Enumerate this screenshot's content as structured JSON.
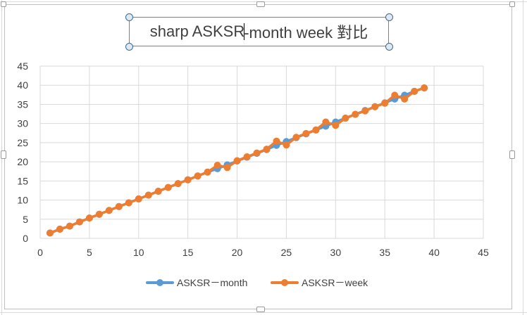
{
  "title": {
    "before_caret": "sharp ASKSR",
    "after_caret": "-month week 對比"
  },
  "colors": {
    "series_month": "#5b9bd5",
    "series_week": "#ed7d31",
    "gridline": "#d9d9d9",
    "axis_text": "#404040"
  },
  "chart_data": {
    "type": "line",
    "title": "sharp ASKSR-month week 對比",
    "xlim": [
      0,
      45
    ],
    "ylim": [
      0,
      45
    ],
    "x_ticks": [
      0,
      5,
      10,
      15,
      20,
      25,
      30,
      35,
      40,
      45
    ],
    "y_ticks": [
      0,
      5,
      10,
      15,
      20,
      25,
      30,
      35,
      40,
      45
    ],
    "grid": true,
    "markers": true,
    "legend_position": "bottom",
    "series": [
      {
        "name": "ASKSR－month",
        "color": "#5b9bd5",
        "x": [
          1,
          2,
          3,
          4,
          5,
          6,
          7,
          8,
          9,
          10,
          11,
          12,
          13,
          14,
          15,
          16,
          17,
          18,
          19,
          20,
          21,
          22,
          23,
          24,
          25,
          26,
          27,
          28,
          29,
          30,
          31,
          32,
          33,
          34,
          35,
          36,
          37,
          38,
          39
        ],
        "y": [
          1.4,
          2.4,
          3.2,
          4.3,
          5.3,
          6.3,
          7.3,
          8.3,
          9.3,
          10.3,
          11.3,
          12.3,
          13.3,
          14.3,
          15.3,
          16.3,
          17.3,
          18.2,
          19.2,
          20.2,
          21.2,
          22.2,
          23.2,
          24.3,
          25.3,
          26.3,
          27.3,
          28.3,
          29.3,
          30.4,
          31.4,
          32.4,
          33.4,
          34.4,
          35.4,
          36.4,
          37.4,
          38.4,
          39.3
        ]
      },
      {
        "name": "ASKSR－week",
        "color": "#ed7d31",
        "x": [
          1,
          2,
          3,
          4,
          5,
          6,
          7,
          8,
          9,
          10,
          11,
          12,
          13,
          14,
          15,
          16,
          17,
          18,
          19,
          20,
          21,
          22,
          23,
          24,
          25,
          26,
          27,
          28,
          29,
          30,
          31,
          32,
          33,
          34,
          35,
          36,
          37,
          38,
          39
        ],
        "y": [
          1.4,
          2.4,
          3.2,
          4.3,
          5.3,
          6.3,
          7.3,
          8.3,
          9.3,
          10.3,
          11.3,
          12.3,
          13.3,
          14.3,
          15.3,
          16.3,
          17.3,
          19.1,
          18.5,
          20.3,
          21.3,
          22.3,
          23.3,
          25.4,
          24.4,
          26.4,
          27.4,
          28.3,
          30.4,
          29.5,
          31.4,
          32.4,
          33.3,
          34.4,
          35.3,
          37.4,
          36.4,
          38.4,
          39.3
        ]
      }
    ]
  }
}
